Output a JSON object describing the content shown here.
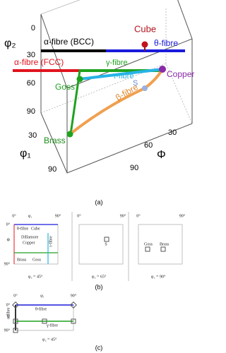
{
  "panel_a": {
    "label": "(a)",
    "axis_phi2": "φ₂",
    "axis_phi1": "φ₁",
    "axis_Phi": "Φ",
    "phi2_ticks": [
      "0",
      "30",
      "60",
      "90"
    ],
    "phi1_ticks": [
      "30",
      "90"
    ],
    "Phi_ticks": [
      "30",
      "60",
      "90"
    ],
    "cube": "Cube",
    "alpha_bcc": "α-fibre (BCC)",
    "theta": "θ-fibre",
    "gamma": "γ-fibre",
    "alpha_fcc": "α-fibre (FCC)",
    "tau": "τ-fibre",
    "copper": "Copper",
    "goss": "Goss",
    "s": "S",
    "beta": "β-fibre",
    "brass": "Brass"
  },
  "panel_b": {
    "label": "(b)",
    "p1": {
      "phi1": "φ₁",
      "zero_x": "0°",
      "ninety_x": "90°",
      "Phi": "Φ",
      "zero_y": "0°",
      "ninety_y": "90°",
      "theta": "θ-fibre",
      "cube": "Cube",
      "dillamore": "Dillamore",
      "copper": "Copper",
      "tau": "τ-fibre",
      "brass": "Brass",
      "goss": "Goss",
      "caption": "φ₂ = 45°"
    },
    "p2": {
      "zero": "0°",
      "ninety": "90°",
      "s": "S",
      "caption": "φ₂ = 65°"
    },
    "p3": {
      "zero": "0°",
      "ninety": "90°",
      "goss": "Goss",
      "brass": "Brass",
      "caption": "φ₂ = 90°"
    }
  },
  "panel_c": {
    "label": "(c)",
    "zero_x": "0°",
    "phi1": "φ₁",
    "ninety_x": "90°",
    "zero_y": "0°",
    "Phi": "Φ",
    "ninety_y": "90°",
    "theta": "θ-fibre",
    "alpha": "α-fibre",
    "gamma": "γ-fibre",
    "caption": "φ₂ = 45°"
  }
}
